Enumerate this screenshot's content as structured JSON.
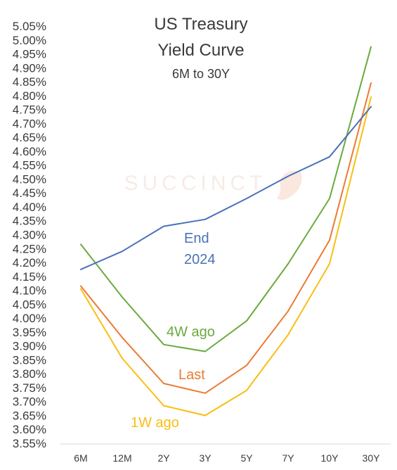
{
  "chart_data": {
    "type": "line",
    "title": "US Treasury",
    "title_line2": "Yield Curve",
    "subtitle": "6M to 30Y",
    "watermark": "SUCCINCT",
    "xlabel": "",
    "ylabel": "",
    "categories": [
      "6M",
      "12M",
      "2Y",
      "3Y",
      "5Y",
      "7Y",
      "10Y",
      "30Y"
    ],
    "ylim": [
      3.55,
      5.05
    ],
    "ytick_step": 0.05,
    "ytick_labels": [
      "3.55%",
      "3.60%",
      "3.65%",
      "3.70%",
      "3.75%",
      "3.80%",
      "3.85%",
      "3.90%",
      "3.95%",
      "4.00%",
      "4.05%",
      "4.10%",
      "4.15%",
      "4.20%",
      "4.25%",
      "4.30%",
      "4.35%",
      "4.40%",
      "4.45%",
      "4.50%",
      "4.55%",
      "4.60%",
      "4.65%",
      "4.70%",
      "4.75%",
      "4.80%",
      "4.85%",
      "4.90%",
      "4.95%",
      "5.00%",
      "5.05%"
    ],
    "grid": false,
    "legend": "inline labels",
    "series": [
      {
        "name": "End 2024",
        "label_line1": "End",
        "label_line2": "2024",
        "color": "#4a72b8",
        "values": [
          4.175,
          4.24,
          4.33,
          4.355,
          4.43,
          4.51,
          4.58,
          4.76
        ]
      },
      {
        "name": "4W ago",
        "label_line1": "4W ago",
        "color": "#6aaa3f",
        "values": [
          4.265,
          4.075,
          3.905,
          3.88,
          3.99,
          4.195,
          4.43,
          4.975
        ]
      },
      {
        "name": "Last",
        "label_line1": "Last",
        "color": "#ec7a35",
        "values": [
          4.115,
          3.93,
          3.765,
          3.73,
          3.83,
          4.025,
          4.28,
          4.845
        ]
      },
      {
        "name": "1W ago",
        "label_line1": "1W ago",
        "color": "#f9be13",
        "values": [
          4.105,
          3.855,
          3.685,
          3.65,
          3.74,
          3.94,
          4.195,
          4.795
        ]
      }
    ]
  }
}
